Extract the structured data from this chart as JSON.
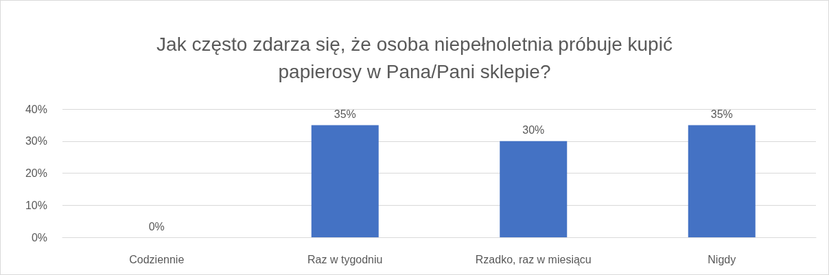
{
  "chart_data": {
    "type": "bar",
    "title": "Jak często zdarza się, że osoba niepełnoletnia próbuje kupić\npapierosy w Pana/Pani sklepie?",
    "categories": [
      "Codziennie",
      "Raz w tygodniu",
      "Rzadko, raz w miesiącu",
      "Nigdy"
    ],
    "values": [
      0,
      35,
      30,
      35
    ],
    "value_labels": [
      "0%",
      "35%",
      "30%",
      "35%"
    ],
    "color": "#4472c4",
    "ylim": [
      0,
      40
    ],
    "yticks": [
      {
        "value": 0,
        "label": "0%"
      },
      {
        "value": 10,
        "label": "10%"
      },
      {
        "value": 20,
        "label": "20%"
      },
      {
        "value": 30,
        "label": "30%"
      },
      {
        "value": 40,
        "label": "40%"
      }
    ],
    "grid": "y"
  }
}
